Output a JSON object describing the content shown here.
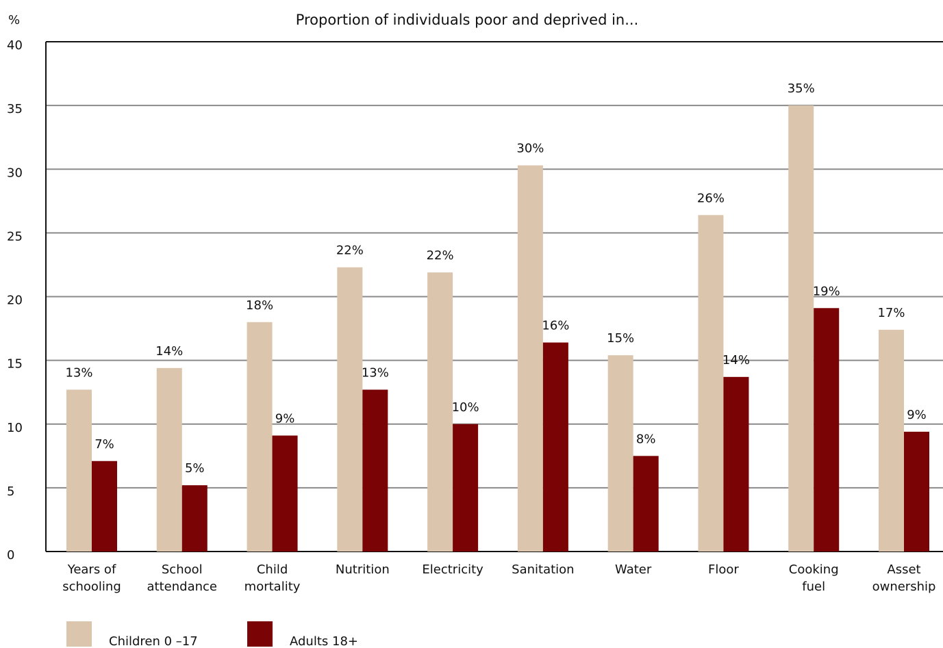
{
  "chart_data": {
    "type": "bar",
    "title": "Proportion of individuals poor and deprived in...",
    "y_label": "%",
    "categories": [
      "Years of\nschooling",
      "School\nattendance",
      "Child\nmortality",
      "Nutrition",
      "Electricity",
      "Sanitation",
      "Water",
      "Floor",
      "Cooking\nfuel",
      "Asset\nownership"
    ],
    "series": [
      {
        "name": "Children 0 –17",
        "color": "#dcc5ad",
        "values": [
          12.7,
          14.4,
          18.0,
          22.3,
          21.9,
          30.3,
          15.4,
          26.4,
          35.0,
          17.4
        ],
        "value_labels": [
          "13%",
          "14%",
          "18%",
          "22%",
          "22%",
          "30%",
          "15%",
          "26%",
          "35%",
          "17%"
        ]
      },
      {
        "name": "Adults 18+",
        "color": "#7a0405",
        "values": [
          7.1,
          5.2,
          9.1,
          12.7,
          10.0,
          16.4,
          7.5,
          13.7,
          19.1,
          9.4
        ],
        "value_labels": [
          "7%",
          "5%",
          "9%",
          "13%",
          "10%",
          "16%",
          "8%",
          "14%",
          "19%",
          "9%"
        ]
      }
    ],
    "ylim": [
      0,
      40
    ],
    "yticks": [
      0,
      5,
      10,
      15,
      20,
      25,
      30,
      35,
      40
    ],
    "grid": true
  }
}
